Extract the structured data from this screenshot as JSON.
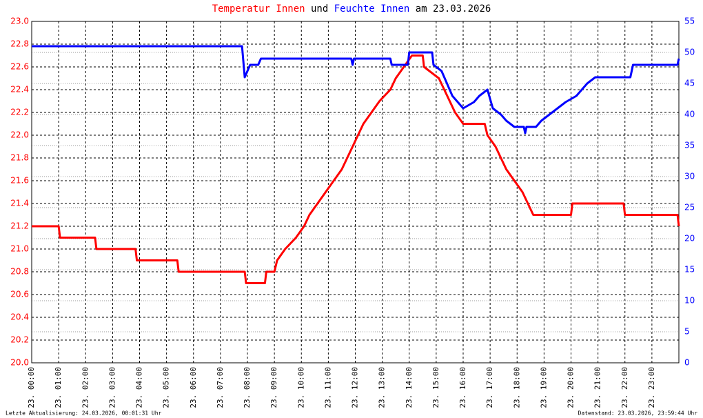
{
  "chart_data": {
    "type": "line",
    "title": [
      "und",
      "am 23.03.2026"
    ],
    "footer_left": "Letzte Aktualisierung: 24.03.2026, 00:01:31 Uhr",
    "footer_right": "Datenstand: 23.03.2026, 23:59:44 Uhr",
    "xlim": [
      0,
      24
    ],
    "xticks": [
      {
        "value": 0,
        "label": "23. 00:00"
      },
      {
        "value": 1,
        "label": "23. 01:00"
      },
      {
        "value": 2,
        "label": "23. 02:00"
      },
      {
        "value": 3,
        "label": "23. 03:00"
      },
      {
        "value": 4,
        "label": "23. 04:00"
      },
      {
        "value": 5,
        "label": "23. 05:00"
      },
      {
        "value": 6,
        "label": "23. 06:00"
      },
      {
        "value": 7,
        "label": "23. 07:00"
      },
      {
        "value": 8,
        "label": "23. 08:00"
      },
      {
        "value": 9,
        "label": "23. 09:00"
      },
      {
        "value": 10,
        "label": "23. 10:00"
      },
      {
        "value": 11,
        "label": "23. 11:00"
      },
      {
        "value": 12,
        "label": "23. 12:00"
      },
      {
        "value": 13,
        "label": "23. 13:00"
      },
      {
        "value": 14,
        "label": "23. 14:00"
      },
      {
        "value": 15,
        "label": "23. 15:00"
      },
      {
        "value": 16,
        "label": "23. 16:00"
      },
      {
        "value": 17,
        "label": "23. 17:00"
      },
      {
        "value": 18,
        "label": "23. 18:00"
      },
      {
        "value": 19,
        "label": "23. 19:00"
      },
      {
        "value": 20,
        "label": "23. 20:00"
      },
      {
        "value": 21,
        "label": "23. 21:00"
      },
      {
        "value": 22,
        "label": "23. 22:00"
      },
      {
        "value": 23,
        "label": "23. 23:00"
      }
    ],
    "ylim": [
      20,
      23
    ],
    "yticks": [
      {
        "value": 20,
        "label": "20.0"
      },
      20.2,
      20.4,
      20.6,
      20.8,
      {
        "value": 21,
        "label": "21.0"
      },
      21.2,
      21.4,
      21.6,
      21.8,
      {
        "value": 22,
        "label": "22.0"
      },
      22.2,
      22.4,
      22.6,
      22.8,
      {
        "value": 23,
        "label": "23.0"
      }
    ],
    "y2lim": [
      0,
      55
    ],
    "y2ticks": [
      0,
      5,
      10,
      15,
      20,
      25,
      30,
      35,
      40,
      45,
      50,
      55
    ],
    "grid": true,
    "series": [
      {
        "name": "Temperatur Innen",
        "color": "#ff0000",
        "x": [
          0,
          1.0,
          1.05,
          2.35,
          2.4,
          3.85,
          3.9,
          5.4,
          5.45,
          7.9,
          7.95,
          8.65,
          8.7,
          9.0,
          9.1,
          9.4,
          9.8,
          10.1,
          10.3,
          10.6,
          10.9,
          11.2,
          11.5,
          11.7,
          11.9,
          12.1,
          12.3,
          12.6,
          12.9,
          13.3,
          13.5,
          13.8,
          14.1,
          14.5,
          14.55,
          15.1,
          15.3,
          15.5,
          15.7,
          16.0,
          16.8,
          16.9,
          17.2,
          17.4,
          17.6,
          17.9,
          18.2,
          18.4,
          18.6,
          20.0,
          20.05,
          21.95,
          22.0,
          23.95,
          24
        ],
        "values": [
          21.2,
          21.2,
          21.1,
          21.1,
          21.0,
          21.0,
          20.9,
          20.9,
          20.8,
          20.8,
          20.7,
          20.7,
          20.8,
          20.8,
          20.9,
          21.0,
          21.1,
          21.2,
          21.3,
          21.4,
          21.5,
          21.6,
          21.7,
          21.8,
          21.9,
          22.0,
          22.1,
          22.2,
          22.3,
          22.4,
          22.5,
          22.6,
          22.7,
          22.7,
          22.6,
          22.5,
          22.4,
          22.3,
          22.2,
          22.1,
          22.1,
          22.0,
          21.9,
          21.8,
          21.7,
          21.6,
          21.5,
          21.4,
          21.3,
          21.3,
          21.4,
          21.4,
          21.3,
          21.3,
          21.2
        ]
      },
      {
        "name": "Feuchte Innen",
        "color": "#0000ff",
        "axis": "y2",
        "x": [
          0,
          7.8,
          7.9,
          8.0,
          8.1,
          8.4,
          8.5,
          11.85,
          11.9,
          11.95,
          13.3,
          13.35,
          13.95,
          14.0,
          14.85,
          14.9,
          15.2,
          15.4,
          15.6,
          15.8,
          16.0,
          16.4,
          16.6,
          16.9,
          17.1,
          17.4,
          17.6,
          17.9,
          18.25,
          18.3,
          18.35,
          18.7,
          18.9,
          19.2,
          19.5,
          19.8,
          20.2,
          20.4,
          20.6,
          20.9,
          22.2,
          22.3,
          23.95,
          24
        ],
        "values": [
          51,
          51,
          46,
          47,
          48,
          48,
          49,
          49,
          48,
          49,
          49,
          48,
          48,
          50,
          50,
          48,
          47,
          45,
          43,
          42,
          41,
          42,
          43,
          44,
          41,
          40,
          39,
          38,
          38,
          37,
          38,
          38,
          39,
          40,
          41,
          42,
          43,
          44,
          45,
          46,
          46,
          48,
          48,
          49
        ]
      }
    ]
  }
}
